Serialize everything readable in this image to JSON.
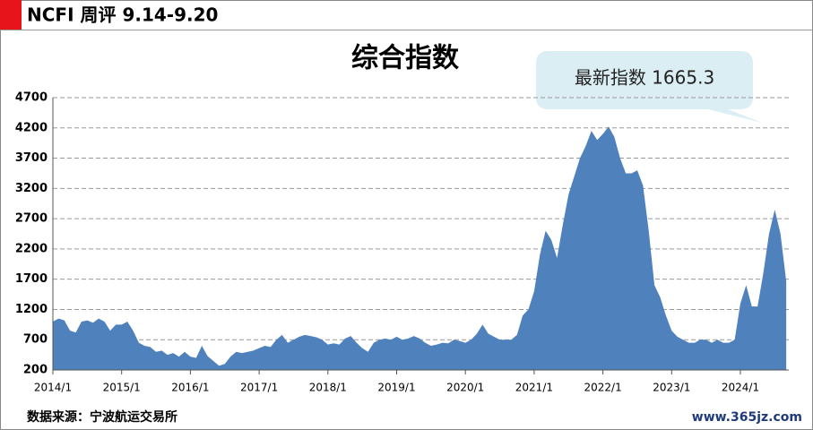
{
  "header": "NCFI 周评 9.14-9.20",
  "source": "数据来源：宁波航运交易所",
  "website": "www.365jz.com",
  "chart_data": {
    "type": "area",
    "title": "综合指数",
    "annotation": "最新指数 1665.3",
    "color": "#4f81bd",
    "grid": true,
    "ylim": [
      200,
      4700
    ],
    "yticks": [
      200,
      700,
      1200,
      1700,
      2200,
      2700,
      3200,
      3700,
      4200,
      4700
    ],
    "categories": [
      "2014/1",
      null,
      null,
      null,
      null,
      null,
      null,
      null,
      null,
      null,
      null,
      null,
      "2015/1",
      null,
      null,
      null,
      null,
      null,
      null,
      null,
      null,
      null,
      null,
      null,
      "2016/1",
      null,
      null,
      null,
      null,
      null,
      null,
      null,
      null,
      null,
      null,
      null,
      "2017/1",
      null,
      null,
      null,
      null,
      null,
      null,
      null,
      null,
      null,
      null,
      null,
      "2018/1",
      null,
      null,
      null,
      null,
      null,
      null,
      null,
      null,
      null,
      null,
      null,
      "2019/1",
      null,
      null,
      null,
      null,
      null,
      null,
      null,
      null,
      null,
      null,
      null,
      "2020/1",
      null,
      null,
      null,
      null,
      null,
      null,
      null,
      null,
      null,
      null,
      null,
      "2021/1",
      null,
      null,
      null,
      null,
      null,
      null,
      null,
      null,
      null,
      null,
      null,
      "2022/1",
      null,
      null,
      null,
      null,
      null,
      null,
      null,
      null,
      null,
      null,
      null,
      "2023/1",
      null,
      null,
      null,
      null,
      null,
      null,
      null,
      null,
      null,
      null,
      null,
      "2024/1",
      null,
      null,
      null,
      null,
      null,
      null,
      null,
      null
    ],
    "values": [
      1000,
      1050,
      1020,
      850,
      820,
      1000,
      1020,
      980,
      1050,
      1000,
      850,
      950,
      950,
      1000,
      850,
      650,
      600,
      580,
      500,
      520,
      450,
      480,
      420,
      500,
      420,
      400,
      600,
      430,
      350,
      270,
      300,
      420,
      500,
      480,
      500,
      520,
      560,
      600,
      580,
      700,
      780,
      650,
      700,
      750,
      780,
      760,
      740,
      700,
      620,
      640,
      620,
      720,
      760,
      650,
      560,
      500,
      650,
      700,
      720,
      700,
      750,
      700,
      720,
      760,
      720,
      650,
      600,
      620,
      650,
      640,
      700,
      680,
      650,
      700,
      800,
      950,
      800,
      750,
      700,
      700,
      700,
      780,
      1100,
      1200,
      1500,
      2100,
      2500,
      2350,
      2050,
      2600,
      3100,
      3400,
      3700,
      3900,
      4150,
      4000,
      4100,
      4220,
      4050,
      3700,
      3450,
      3450,
      3500,
      3250,
      2500,
      1600,
      1400,
      1100,
      850,
      750,
      700,
      650,
      650,
      700,
      700,
      650,
      700,
      650,
      650,
      700,
      1300,
      1600,
      1250,
      1250,
      1800,
      2450,
      2850,
      2450,
      1665.3
    ]
  }
}
